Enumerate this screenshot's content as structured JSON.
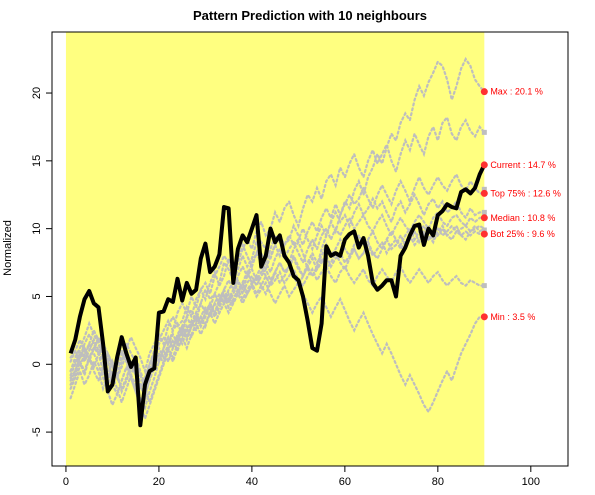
{
  "chart_data": {
    "type": "line",
    "title": "Pattern Prediction with 10 neighbours",
    "xlabel": "",
    "ylabel": "Normalized",
    "xlim": [
      -3,
      108
    ],
    "ylim": [
      -7.5,
      24.5
    ],
    "x_ticks": [
      0,
      20,
      40,
      60,
      80,
      100
    ],
    "y_ticks": [
      -5,
      0,
      5,
      10,
      15,
      20
    ],
    "highlight_region": {
      "x_from": 0,
      "x_to": 90,
      "color": "#FFFF80"
    },
    "colors": {
      "current": "#000000",
      "neighbours": "#BEBEBE",
      "markers": "#FF3030",
      "annotation_text": "#FF0000"
    },
    "current_series": {
      "x": [
        1,
        2,
        3,
        4,
        5,
        6,
        7,
        8,
        9,
        10,
        11,
        12,
        13,
        14,
        15,
        16,
        17,
        18,
        19,
        20,
        21,
        22,
        23,
        24,
        25,
        26,
        27,
        28,
        29,
        30,
        31,
        32,
        33,
        34,
        35,
        36,
        37,
        38,
        39,
        40,
        41,
        42,
        43,
        44,
        45,
        46,
        47,
        48,
        49,
        50,
        51,
        52,
        53,
        54,
        55,
        56,
        57,
        58,
        59,
        60,
        61,
        62,
        63,
        64,
        65,
        66,
        67,
        68,
        69,
        70,
        71,
        72,
        73,
        74,
        75,
        76,
        77,
        78,
        79,
        80,
        81,
        82,
        83,
        84,
        85,
        86,
        87,
        88,
        89,
        90
      ],
      "y": [
        0.8,
        1.8,
        3.5,
        4.8,
        5.4,
        4.5,
        4.2,
        1.5,
        -2.0,
        -1.5,
        0.5,
        2.0,
        0.8,
        -0.2,
        0.5,
        -4.5,
        -1.5,
        -0.5,
        -0.3,
        3.8,
        3.9,
        4.8,
        4.6,
        6.3,
        4.7,
        6.0,
        5.2,
        5.5,
        7.8,
        8.9,
        6.8,
        7.2,
        8.1,
        11.6,
        11.5,
        6.0,
        8.5,
        9.5,
        9.0,
        10.0,
        11.0,
        7.2,
        8.0,
        10.0,
        9.0,
        9.5,
        8.0,
        7.5,
        6.5,
        6.2,
        5.0,
        3.2,
        1.2,
        1.0,
        3.0,
        8.7,
        8.0,
        8.2,
        8.0,
        9.2,
        9.6,
        9.8,
        8.6,
        9.3,
        8.0,
        6.0,
        5.5,
        5.8,
        6.2,
        6.2,
        5.0,
        8.0,
        8.6,
        9.5,
        10.2,
        10.3,
        8.8,
        10.0,
        9.5,
        11.0,
        11.3,
        11.8,
        11.6,
        11.5,
        12.7,
        12.9,
        12.6,
        13.0,
        14.0,
        14.7
      ]
    },
    "neighbour_series": [
      {
        "x_start": 1,
        "values": [
          -0.5,
          0.2,
          1.0,
          0.5,
          1.5,
          2.5,
          1.8,
          1.0,
          0.2,
          -1.0,
          -0.5,
          0.5,
          1.5,
          0.8,
          0.2,
          -1.5,
          -2.5,
          -1.0,
          0.5,
          1.5,
          2.0,
          1.5,
          2.5,
          3.0,
          2.2,
          3.5,
          4.0,
          3.2,
          4.5,
          5.5,
          4.8,
          5.2,
          6.0,
          7.5,
          7.0,
          6.2,
          7.0,
          8.0,
          7.2,
          7.8,
          9.0,
          8.2,
          7.5,
          8.5,
          9.5,
          9.0,
          8.0,
          7.5,
          8.5,
          9.0,
          8.2,
          7.0,
          6.5,
          7.2,
          8.5,
          9.5,
          10.5,
          9.8,
          11.0,
          12.0,
          11.5,
          12.8,
          13.5,
          12.5,
          13.8,
          14.5,
          15.5,
          14.8,
          16.0,
          17.0,
          16.5,
          17.8,
          18.5,
          18.0,
          19.5,
          20.5,
          19.8,
          20.8,
          21.5,
          22.3,
          22.0,
          21.0,
          19.5,
          20.5,
          21.8,
          22.5,
          22.0,
          21.0,
          20.5,
          20.1
        ]
      },
      {
        "x_start": 1,
        "values": [
          0.5,
          1.0,
          0.2,
          -0.8,
          0.5,
          1.2,
          0.8,
          -0.5,
          -1.5,
          -0.8,
          0.5,
          1.0,
          0.2,
          -1.0,
          -2.0,
          -3.0,
          -2.0,
          -0.5,
          0.8,
          1.8,
          2.5,
          3.2,
          2.5,
          3.8,
          4.5,
          3.8,
          5.0,
          4.2,
          5.5,
          6.0,
          5.2,
          6.5,
          7.2,
          8.0,
          7.5,
          6.8,
          7.5,
          8.5,
          9.2,
          8.5,
          9.8,
          10.5,
          9.5,
          10.0,
          11.2,
          10.5,
          11.5,
          12.0,
          11.0,
          10.2,
          11.5,
          12.5,
          12.0,
          13.0,
          12.2,
          13.5,
          14.0,
          13.2,
          14.5,
          13.8,
          14.8,
          15.5,
          14.5,
          13.8,
          15.0,
          15.8,
          14.8,
          15.5,
          16.2,
          15.0,
          14.2,
          15.5,
          16.5,
          15.8,
          17.0,
          16.2,
          15.5,
          16.8,
          17.5,
          16.5,
          17.8,
          18.2,
          17.0,
          16.5,
          17.5,
          18.0,
          17.2,
          16.8,
          17.5,
          17.1
        ]
      },
      {
        "x_start": 1,
        "values": [
          -1.0,
          -0.5,
          0.5,
          1.5,
          2.2,
          1.5,
          0.8,
          1.5,
          0.5,
          -0.2,
          -1.0,
          0.2,
          1.2,
          2.0,
          1.2,
          0.5,
          -0.5,
          0.8,
          1.5,
          2.2,
          1.5,
          2.8,
          3.5,
          2.8,
          3.2,
          4.2,
          3.5,
          4.8,
          5.5,
          4.8,
          6.0,
          6.8,
          5.8,
          6.5,
          7.8,
          7.0,
          7.5,
          8.8,
          8.0,
          7.2,
          8.2,
          9.0,
          8.5,
          7.8,
          8.8,
          9.5,
          8.8,
          9.2,
          10.2,
          9.5,
          8.8,
          9.8,
          10.5,
          9.8,
          10.8,
          11.5,
          10.8,
          11.8,
          11.0,
          11.8,
          12.5,
          11.8,
          12.2,
          13.0,
          12.2,
          11.5,
          12.5,
          13.2,
          12.5,
          11.8,
          12.8,
          13.5,
          12.8,
          12.0,
          13.0,
          13.8,
          13.0,
          12.5,
          13.2,
          13.8,
          13.2,
          12.8,
          13.5,
          14.0,
          13.2,
          12.8,
          13.5,
          13.0,
          12.6,
          12.6
        ]
      },
      {
        "x_start": 1,
        "values": [
          -2.5,
          -1.5,
          -0.5,
          -1.5,
          -0.8,
          0.2,
          -0.5,
          -1.8,
          -1.0,
          0.2,
          -0.8,
          -2.0,
          -1.2,
          -0.2,
          0.5,
          -0.5,
          -1.5,
          -0.8,
          0.5,
          1.2,
          0.5,
          1.5,
          2.2,
          1.5,
          2.8,
          3.5,
          2.8,
          3.8,
          4.5,
          3.8,
          4.2,
          5.2,
          4.5,
          5.5,
          6.2,
          5.5,
          6.5,
          7.2,
          6.5,
          7.5,
          8.2,
          7.5,
          7.0,
          8.0,
          8.8,
          8.0,
          8.8,
          9.5,
          8.8,
          9.2,
          10.0,
          9.2,
          8.5,
          9.5,
          10.2,
          9.5,
          10.5,
          11.2,
          10.5,
          11.0,
          10.2,
          11.2,
          11.8,
          11.0,
          11.5,
          12.2,
          11.5,
          12.0,
          11.2,
          10.5,
          11.5,
          12.0,
          11.2,
          11.8,
          12.5,
          11.8,
          11.0,
          11.8,
          12.2,
          11.5,
          12.0,
          11.2,
          11.5,
          12.0,
          11.2,
          10.8,
          11.5,
          11.0,
          11.2,
          11.2
        ]
      },
      {
        "x_start": 1,
        "values": [
          -1.5,
          -0.8,
          0.2,
          -0.5,
          0.5,
          -0.5,
          -1.2,
          -0.2,
          0.8,
          0.0,
          -1.0,
          -0.2,
          0.8,
          0.2,
          -0.8,
          -1.8,
          -1.0,
          0.0,
          0.8,
          0.2,
          1.2,
          2.0,
          1.2,
          2.2,
          2.8,
          2.0,
          3.0,
          3.8,
          3.0,
          3.8,
          4.5,
          3.8,
          4.8,
          5.5,
          4.8,
          5.5,
          6.2,
          5.5,
          6.5,
          7.0,
          6.2,
          6.8,
          7.5,
          6.8,
          7.8,
          8.5,
          7.8,
          8.5,
          9.0,
          8.2,
          7.5,
          8.5,
          9.2,
          8.5,
          9.5,
          10.0,
          9.2,
          10.0,
          9.5,
          10.2,
          10.8,
          10.0,
          10.5,
          11.0,
          10.2,
          9.8,
          10.5,
          11.0,
          10.2,
          9.5,
          10.2,
          10.8,
          10.2,
          9.8,
          10.5,
          11.0,
          10.5,
          10.0,
          10.8,
          11.2,
          10.5,
          10.2,
          10.8,
          11.0,
          10.5,
          10.2,
          10.8,
          10.5,
          10.8,
          10.8
        ]
      },
      {
        "x_start": 1,
        "values": [
          -0.5,
          0.5,
          1.2,
          2.0,
          3.0,
          2.2,
          1.5,
          0.5,
          -0.5,
          -1.2,
          -0.2,
          0.8,
          0.2,
          -0.8,
          -1.5,
          -2.5,
          -3.2,
          -2.0,
          -1.0,
          0.2,
          1.0,
          0.2,
          1.2,
          2.0,
          1.5,
          2.5,
          3.2,
          2.5,
          3.5,
          4.2,
          3.5,
          4.5,
          5.2,
          4.5,
          5.5,
          6.0,
          5.2,
          6.0,
          6.8,
          6.0,
          6.5,
          7.2,
          6.5,
          5.8,
          6.8,
          7.5,
          6.8,
          7.2,
          8.0,
          7.2,
          6.5,
          7.5,
          8.2,
          7.5,
          8.0,
          8.8,
          8.0,
          8.5,
          9.2,
          8.5,
          8.0,
          8.8,
          9.5,
          8.8,
          9.2,
          9.8,
          9.0,
          8.5,
          9.2,
          9.8,
          9.2,
          8.8,
          9.5,
          10.0,
          9.2,
          9.8,
          10.2,
          9.5,
          9.0,
          9.8,
          10.2,
          9.5,
          9.8,
          10.2,
          9.5,
          9.2,
          9.8,
          10.2,
          9.8,
          10.0
        ]
      },
      {
        "x_start": 1,
        "values": [
          -0.8,
          0.0,
          0.8,
          0.2,
          1.0,
          1.8,
          1.0,
          0.2,
          -0.8,
          -1.5,
          -2.2,
          -1.2,
          -0.2,
          -1.0,
          -2.0,
          -3.0,
          -2.2,
          -1.2,
          -0.2,
          0.8,
          0.0,
          1.0,
          1.8,
          1.0,
          2.0,
          2.8,
          2.0,
          3.0,
          3.5,
          2.8,
          3.8,
          4.5,
          3.8,
          4.5,
          5.2,
          4.5,
          5.2,
          6.0,
          5.2,
          5.8,
          6.5,
          5.8,
          5.2,
          6.0,
          6.8,
          6.0,
          6.5,
          7.2,
          6.5,
          5.8,
          6.5,
          7.2,
          6.5,
          7.0,
          7.8,
          7.0,
          7.5,
          8.2,
          7.5,
          7.0,
          7.8,
          8.5,
          7.8,
          8.2,
          9.0,
          8.2,
          7.8,
          8.5,
          9.2,
          8.5,
          8.8,
          9.5,
          8.8,
          9.2,
          9.8,
          9.0,
          9.5,
          10.0,
          9.2,
          9.5,
          10.0,
          9.5,
          9.2,
          9.8,
          9.5,
          9.8,
          9.5,
          9.8,
          9.6,
          9.6
        ]
      },
      {
        "x_start": 1,
        "values": [
          -1.2,
          -0.5,
          0.5,
          1.2,
          0.5,
          -0.2,
          0.8,
          1.5,
          0.8,
          0.0,
          -0.8,
          -1.8,
          -1.0,
          0.0,
          -0.8,
          -1.8,
          -1.0,
          0.0,
          1.0,
          0.2,
          1.2,
          2.0,
          1.2,
          2.0,
          2.8,
          2.0,
          2.8,
          3.5,
          2.8,
          3.5,
          4.2,
          3.5,
          4.2,
          5.0,
          4.2,
          4.8,
          5.5,
          4.8,
          5.5,
          6.0,
          5.2,
          5.8,
          6.5,
          5.8,
          6.2,
          6.8,
          6.0,
          6.5,
          7.0,
          6.2,
          5.8,
          6.5,
          7.0,
          6.2,
          6.8,
          7.2,
          6.5,
          6.0,
          6.8,
          7.2,
          6.5,
          6.0,
          6.5,
          7.0,
          6.2,
          5.8,
          6.5,
          7.0,
          6.5,
          6.0,
          6.8,
          7.2,
          6.5,
          6.0,
          6.5,
          7.0,
          6.5,
          6.0,
          6.5,
          6.8,
          6.2,
          5.8,
          6.2,
          6.5,
          6.0,
          5.8,
          6.2,
          6.0,
          5.8,
          5.8
        ]
      },
      {
        "x_start": 1,
        "values": [
          -1.8,
          -1.0,
          -0.2,
          0.8,
          1.5,
          0.8,
          0.0,
          -1.0,
          -2.0,
          -3.0,
          -2.2,
          -1.2,
          -0.2,
          -1.0,
          -2.0,
          -3.0,
          -4.0,
          -3.0,
          -2.0,
          -1.0,
          0.0,
          1.0,
          0.2,
          1.2,
          2.0,
          1.2,
          2.2,
          3.0,
          2.2,
          3.0,
          3.8,
          3.0,
          3.8,
          4.5,
          3.8,
          4.5,
          5.2,
          4.5,
          5.2,
          5.8,
          5.0,
          5.5,
          6.0,
          5.2,
          4.5,
          5.2,
          5.8,
          5.0,
          5.5,
          6.0,
          5.2,
          4.5,
          3.8,
          4.5,
          5.0,
          4.2,
          3.5,
          4.2,
          4.8,
          4.0,
          3.2,
          2.5,
          3.2,
          3.8,
          3.0,
          2.2,
          1.5,
          0.8,
          1.5,
          0.8,
          0.0,
          -0.8,
          -1.5,
          -0.8,
          -1.5,
          -2.2,
          -3.0,
          -3.5,
          -2.8,
          -2.0,
          -1.2,
          -0.5,
          -1.2,
          -0.2,
          0.8,
          1.5,
          2.2,
          3.0,
          3.5,
          3.5
        ]
      },
      {
        "x_start": 1,
        "values": [
          0.2,
          1.0,
          1.8,
          1.0,
          0.2,
          1.2,
          2.0,
          1.2,
          0.2,
          -0.8,
          -1.8,
          -2.8,
          -1.8,
          -0.8,
          0.2,
          -0.8,
          -1.8,
          -2.8,
          -1.8,
          -0.8,
          0.2,
          1.2,
          0.5,
          1.5,
          2.5,
          1.8,
          2.8,
          3.5,
          2.8,
          3.8,
          4.5,
          3.8,
          4.5,
          5.2,
          4.5,
          5.2,
          6.0,
          5.2,
          6.0,
          6.5,
          5.8,
          6.5,
          7.0,
          6.2,
          6.8,
          7.5,
          6.8,
          7.2,
          7.8,
          7.0,
          6.5,
          7.2,
          7.8,
          7.0,
          7.5,
          8.0,
          7.2,
          7.8,
          8.2,
          7.5,
          8.0,
          8.5,
          7.8,
          8.2,
          8.8,
          8.0,
          8.5,
          9.0,
          8.2,
          8.8,
          9.2,
          8.5,
          9.0,
          9.5,
          8.8,
          9.2,
          9.8,
          9.2,
          9.5,
          10.0,
          9.5,
          9.8,
          10.2,
          9.8,
          10.0,
          10.2,
          9.8,
          10.0,
          10.2,
          10.0
        ]
      }
    ],
    "annotations": [
      {
        "label": "Max : 20.1 %",
        "y": 20.1
      },
      {
        "label": "Current : 14.7 %",
        "y": 14.7
      },
      {
        "label": "Top 75% : 12.6 %",
        "y": 12.6
      },
      {
        "label": "Median : 10.8 %",
        "y": 10.8
      },
      {
        "label": "Bot 25% : 9.6 %",
        "y": 9.6
      },
      {
        "label": "Min : 3.5 %",
        "y": 3.5
      }
    ],
    "grey_markers": [
      17.1,
      12.9,
      11.2,
      9.9,
      5.8
    ],
    "grid": false,
    "legend": "none"
  }
}
